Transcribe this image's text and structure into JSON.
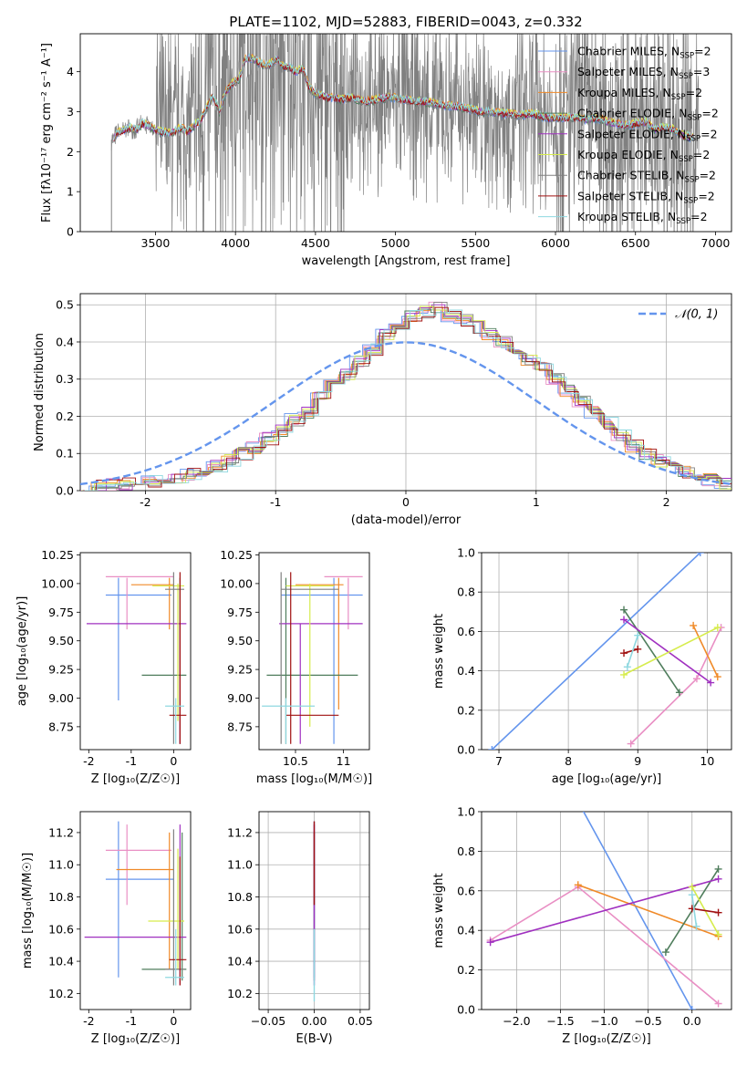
{
  "chart_data": [
    {
      "id": "spectrum",
      "type": "line",
      "title": "PLATE=1102, MJD=52883, FIBERID=0043, z=0.332",
      "xlabel": "wavelength [Angstrom, rest frame]",
      "ylabel": "Flux [fλ10⁻¹⁷ erg cm⁻² s⁻¹ A⁻¹]",
      "xlim": [
        3030,
        7100
      ],
      "ylim": [
        0,
        4.95
      ],
      "xticks": [
        3500,
        4000,
        4500,
        5000,
        5500,
        6000,
        6500,
        7000
      ],
      "yticks": [
        0,
        1,
        2,
        3,
        4
      ],
      "grid": false,
      "legend_position": "top-right",
      "data_points": {
        "wavelength": [
          3230,
          3260,
          3300,
          3340,
          3380,
          3420,
          3460,
          3500,
          3540,
          3580,
          3620,
          3660,
          3700,
          3740,
          3780,
          3820,
          3860,
          3900,
          3940,
          3980,
          4020,
          4060,
          4100,
          4140,
          4180,
          4220,
          4260,
          4300,
          4340,
          4380,
          4420,
          4460,
          4500,
          4540,
          4580,
          4620,
          4660,
          4700,
          4760,
          4820,
          4880,
          4940,
          5000,
          5060,
          5120,
          5180,
          5240,
          5300,
          5360,
          5420,
          5480,
          5540,
          5600,
          5660,
          5720,
          5780,
          5840,
          5900,
          5960,
          6020,
          6080,
          6140,
          6200,
          6260,
          6320,
          6380,
          6440,
          6500,
          6560,
          6620,
          6680,
          6740,
          6800,
          6860
        ],
        "model_flux": [
          2.3,
          2.45,
          2.55,
          2.6,
          2.55,
          2.7,
          2.65,
          2.55,
          2.5,
          2.45,
          2.5,
          2.6,
          2.5,
          2.65,
          2.75,
          3.1,
          3.4,
          3.0,
          3.5,
          3.7,
          3.8,
          4.3,
          4.35,
          4.25,
          4.15,
          4.2,
          4.3,
          4.15,
          4.1,
          4.0,
          4.1,
          3.6,
          3.45,
          3.4,
          3.35,
          3.35,
          3.3,
          3.35,
          3.3,
          3.25,
          3.3,
          3.35,
          3.35,
          3.3,
          3.25,
          3.25,
          3.2,
          3.15,
          3.15,
          3.1,
          3.05,
          3.0,
          3.0,
          2.95,
          2.95,
          2.9,
          2.95,
          2.9,
          2.85,
          2.85,
          2.85,
          2.85,
          2.8,
          2.85,
          2.75,
          2.7,
          2.65,
          2.7,
          2.75,
          2.55,
          2.6,
          2.55,
          2.4,
          2.35
        ]
      },
      "series": [
        {
          "name": "Chabrier MILES, N",
          "sub": "SSP",
          "eq": "=2",
          "color": "#6495ed"
        },
        {
          "name": "Salpeter MILES, N",
          "sub": "SSP",
          "eq": "=3",
          "color": "#e98fc4"
        },
        {
          "name": "Kroupa MILES, N",
          "sub": "SSP",
          "eq": "=2",
          "color": "#f08a28"
        },
        {
          "name": "Chabrier ELODIE, N",
          "sub": "SSP",
          "eq": "=2",
          "color": "#4f7d5c"
        },
        {
          "name": "Salpeter ELODIE, N",
          "sub": "SSP",
          "eq": "=2",
          "color": "#a030c0"
        },
        {
          "name": "Kroupa ELODIE, N",
          "sub": "SSP",
          "eq": "=2",
          "color": "#d6ec4c"
        },
        {
          "name": "Chabrier STELIB, N",
          "sub": "SSP",
          "eq": "=2",
          "color": "#808080"
        },
        {
          "name": "Salpeter STELIB, N",
          "sub": "SSP",
          "eq": "=2",
          "color": "#a01010"
        },
        {
          "name": "Kroupa STELIB, N",
          "sub": "SSP",
          "eq": "=2",
          "color": "#8fd8e0"
        }
      ]
    },
    {
      "id": "residuals",
      "type": "line",
      "title": "",
      "xlabel": "(data-model)/error",
      "ylabel": "Normed distribution",
      "xlim": [
        -2.5,
        2.5
      ],
      "ylim": [
        0,
        0.53
      ],
      "xticks": [
        -2,
        -1,
        0,
        1,
        2
      ],
      "yticks": [
        0.0,
        0.1,
        0.2,
        0.3,
        0.4,
        0.5
      ],
      "grid": true,
      "legend_position": "top-right",
      "legend_label": "𝒩(0, 1)",
      "histogram": {
        "bin_width": 0.1,
        "bin_start": -2.5,
        "values": [
          0.01,
          0.012,
          0.015,
          0.018,
          0.02,
          0.025,
          0.03,
          0.035,
          0.045,
          0.055,
          0.065,
          0.08,
          0.1,
          0.115,
          0.14,
          0.16,
          0.19,
          0.21,
          0.25,
          0.28,
          0.31,
          0.35,
          0.38,
          0.42,
          0.45,
          0.47,
          0.48,
          0.49,
          0.47,
          0.46,
          0.44,
          0.42,
          0.4,
          0.38,
          0.35,
          0.33,
          0.3,
          0.27,
          0.24,
          0.21,
          0.18,
          0.15,
          0.12,
          0.1,
          0.08,
          0.065,
          0.05,
          0.04,
          0.03,
          0.02
        ]
      },
      "gaussian_color": "#6495ed"
    },
    {
      "id": "age-vs-Z",
      "type": "scatter",
      "xlabel": "Z [log₁₀(Z/Z☉)]",
      "ylabel": "age  [log₁₀(age/yr)]",
      "xlim": [
        -2.2,
        0.4
      ],
      "ylim": [
        8.55,
        10.27
      ],
      "xticks": [
        -2,
        -1,
        0
      ],
      "yticks": [
        8.75,
        9.0,
        9.25,
        9.5,
        9.75,
        10.0,
        10.25
      ],
      "ytick_labels": [
        "8.75",
        "9.00",
        "9.25",
        "9.50",
        "9.75",
        "10.00",
        "10.25"
      ],
      "crosses": [
        {
          "c": "#6495ed",
          "x": [
            -1.6,
            -0.05
          ],
          "y": [
            8.98,
            10.05
          ],
          "cx": -1.3,
          "cy": 9.9
        },
        {
          "c": "#e98fc4",
          "x": [
            -1.6,
            0.0
          ],
          "y": [
            9.6,
            10.05
          ],
          "cx": -1.1,
          "cy": 10.06
        },
        {
          "c": "#f08a28",
          "x": [
            -1.0,
            0.0
          ],
          "y": [
            9.6,
            10.05
          ],
          "cx": -0.1,
          "cy": 9.99
        },
        {
          "c": "#4f7d5c",
          "x": [
            -0.75,
            0.3
          ],
          "y": [
            8.6,
            10.05
          ],
          "cx": 0.15,
          "cy": 9.2
        },
        {
          "c": "#a030c0",
          "x": [
            -2.05,
            0.3
          ],
          "y": [
            8.6,
            9.65
          ],
          "cx": 0.15,
          "cy": 9.65
        },
        {
          "c": "#d6ec4c",
          "x": [
            -0.5,
            0.25
          ],
          "y": [
            8.8,
            10.0
          ],
          "cx": 0.1,
          "cy": 9.98
        },
        {
          "c": "#808080",
          "x": [
            -0.2,
            0.25
          ],
          "y": [
            8.6,
            10.1
          ],
          "cx": 0.0,
          "cy": 9.95
        },
        {
          "c": "#a01010",
          "x": [
            -0.1,
            0.3
          ],
          "y": [
            8.6,
            10.1
          ],
          "cx": 0.15,
          "cy": 8.85
        },
        {
          "c": "#8fd8e0",
          "x": [
            -0.2,
            0.25
          ],
          "y": [
            8.6,
            9.0
          ],
          "cx": 0.05,
          "cy": 8.93
        }
      ]
    },
    {
      "id": "age-vs-mass",
      "type": "scatter",
      "xlabel": "mass [log₁₀(M/M☉)]",
      "ylabel": "",
      "xlim": [
        10.12,
        11.27
      ],
      "ylim": [
        8.55,
        10.27
      ],
      "xticks": [
        10.5,
        11.0
      ],
      "yticks": [
        8.75,
        9.0,
        9.25,
        9.5,
        9.75,
        10.0,
        10.25
      ],
      "ytick_labels": [
        "8.75",
        "9.00",
        "9.25",
        "9.50",
        "9.75",
        "10.00",
        "10.25"
      ],
      "crosses": [
        {
          "c": "#6495ed",
          "x": [
            10.35,
            11.2
          ],
          "y": [
            8.6,
            10.05
          ],
          "cx": 10.9,
          "cy": 9.9
        },
        {
          "c": "#e98fc4",
          "x": [
            10.8,
            11.2
          ],
          "y": [
            9.6,
            10.05
          ],
          "cx": 11.05,
          "cy": 10.06
        },
        {
          "c": "#f08a28",
          "x": [
            10.5,
            11.0
          ],
          "y": [
            8.9,
            10.05
          ],
          "cx": 10.95,
          "cy": 9.99
        },
        {
          "c": "#4f7d5c",
          "x": [
            10.2,
            11.15
          ],
          "y": [
            8.6,
            10.05
          ],
          "cx": 10.4,
          "cy": 9.2
        },
        {
          "c": "#a030c0",
          "x": [
            10.33,
            11.2
          ],
          "y": [
            8.6,
            9.65
          ],
          "cx": 10.55,
          "cy": 9.65
        },
        {
          "c": "#d6ec4c",
          "x": [
            10.4,
            10.9
          ],
          "y": [
            8.75,
            10.0
          ],
          "cx": 10.65,
          "cy": 9.98
        },
        {
          "c": "#808080",
          "x": [
            10.35,
            10.95
          ],
          "y": [
            8.6,
            10.1
          ],
          "cx": 10.35,
          "cy": 9.95
        },
        {
          "c": "#a01010",
          "x": [
            10.4,
            10.95
          ],
          "y": [
            8.6,
            10.1
          ],
          "cx": 10.45,
          "cy": 8.85
        },
        {
          "c": "#8fd8e0",
          "x": [
            10.15,
            10.7
          ],
          "y": [
            8.6,
            9.0
          ],
          "cx": 10.4,
          "cy": 8.93
        }
      ]
    },
    {
      "id": "weight-vs-age",
      "type": "line",
      "xlabel": "age  [log₁₀(age/yr)]",
      "ylabel": "mass weight",
      "xlim": [
        6.75,
        10.35
      ],
      "ylim": [
        0,
        1.0
      ],
      "xticks": [
        7,
        8,
        9,
        10
      ],
      "yticks": [
        0.0,
        0.2,
        0.4,
        0.6,
        0.8,
        1.0
      ],
      "grid": true,
      "lines": [
        {
          "c": "#6495ed",
          "pts": [
            [
              6.9,
              0.0
            ],
            [
              9.9,
              1.0
            ]
          ]
        },
        {
          "c": "#e98fc4",
          "pts": [
            [
              8.9,
              0.03
            ],
            [
              9.85,
              0.36
            ],
            [
              10.2,
              0.62
            ]
          ]
        },
        {
          "c": "#f08a28",
          "pts": [
            [
              9.8,
              0.63
            ],
            [
              10.15,
              0.37
            ]
          ]
        },
        {
          "c": "#4f7d5c",
          "pts": [
            [
              8.8,
              0.71
            ],
            [
              9.6,
              0.29
            ]
          ]
        },
        {
          "c": "#a030c0",
          "pts": [
            [
              8.8,
              0.66
            ],
            [
              10.05,
              0.34
            ]
          ]
        },
        {
          "c": "#d6ec4c",
          "pts": [
            [
              8.8,
              0.38
            ],
            [
              10.15,
              0.62
            ]
          ]
        },
        {
          "c": "#a01010",
          "pts": [
            [
              8.8,
              0.49
            ],
            [
              9.0,
              0.51
            ]
          ]
        },
        {
          "c": "#8fd8e0",
          "pts": [
            [
              8.85,
              0.42
            ],
            [
              9.0,
              0.58
            ]
          ]
        }
      ]
    },
    {
      "id": "mass-vs-Z",
      "type": "scatter",
      "xlabel": "Z [log₁₀(Z/Z☉)]",
      "ylabel": "mass [log₁₀(M/M☉)]",
      "xlim": [
        -2.2,
        0.4
      ],
      "ylim": [
        10.1,
        11.33
      ],
      "xticks": [
        -2,
        -1,
        0
      ],
      "yticks": [
        10.2,
        10.4,
        10.6,
        10.8,
        11.0,
        11.2
      ],
      "ytick_labels": [
        "10.2",
        "10.4",
        "10.6",
        "10.8",
        "11.0",
        "11.2"
      ],
      "crosses": [
        {
          "c": "#6495ed",
          "x": [
            -1.6,
            0.0
          ],
          "y": [
            10.3,
            11.27
          ],
          "cx": -1.3,
          "cy": 10.91
        },
        {
          "c": "#e98fc4",
          "x": [
            -1.6,
            -0.05
          ],
          "y": [
            10.75,
            11.25
          ],
          "cx": -1.1,
          "cy": 11.09
        },
        {
          "c": "#f08a28",
          "x": [
            -1.35,
            0.0
          ],
          "y": [
            10.35,
            11.2
          ],
          "cx": -0.1,
          "cy": 10.97
        },
        {
          "c": "#4f7d5c",
          "x": [
            -0.75,
            0.3
          ],
          "y": [
            10.28,
            11.2
          ],
          "cx": 0.2,
          "cy": 10.35
        },
        {
          "c": "#a030c0",
          "x": [
            -2.1,
            0.3
          ],
          "y": [
            10.25,
            11.25
          ],
          "cx": 0.15,
          "cy": 10.55
        },
        {
          "c": "#d6ec4c",
          "x": [
            -0.6,
            0.25
          ],
          "y": [
            10.35,
            11.1
          ],
          "cx": 0.1,
          "cy": 10.65
        },
        {
          "c": "#808080",
          "x": [
            -0.2,
            0.25
          ],
          "y": [
            10.25,
            11.22
          ],
          "cx": 0.0,
          "cy": 10.35
        },
        {
          "c": "#a01010",
          "x": [
            -0.1,
            0.3
          ],
          "y": [
            10.25,
            11.05
          ],
          "cx": 0.15,
          "cy": 10.41
        },
        {
          "c": "#8fd8e0",
          "x": [
            -0.2,
            0.25
          ],
          "y": [
            10.25,
            10.6
          ],
          "cx": 0.05,
          "cy": 10.3
        }
      ]
    },
    {
      "id": "mass-vs-ebv",
      "type": "scatter",
      "xlabel": "E(B-V)",
      "ylabel": "",
      "xlim": [
        -0.06,
        0.06
      ],
      "ylim": [
        10.1,
        11.33
      ],
      "xticks": [
        -0.05,
        0.0,
        0.05
      ],
      "xtick_labels": [
        "−0.05",
        "0.00",
        "0.05"
      ],
      "yticks": [
        10.2,
        10.4,
        10.6,
        10.8,
        11.0,
        11.2
      ],
      "ytick_labels": [
        "10.2",
        "10.4",
        "10.6",
        "10.8",
        "11.0",
        "11.2"
      ],
      "segments": [
        {
          "c": "#6495ed",
          "y": [
            10.3,
            11.27
          ]
        },
        {
          "c": "#4f7d5c",
          "y": [
            10.28,
            11.2
          ]
        },
        {
          "c": "#a030c0",
          "y": [
            10.25,
            11.25
          ]
        },
        {
          "c": "#a01010",
          "y": [
            10.75,
            11.27
          ]
        },
        {
          "c": "#8fd8e0",
          "y": [
            10.15,
            10.6
          ]
        }
      ]
    },
    {
      "id": "weight-vs-Z",
      "type": "line",
      "xlabel": "Z [log₁₀(Z/Z☉)]",
      "ylabel": "mass weight",
      "xlim": [
        -2.4,
        0.45
      ],
      "ylim": [
        0,
        1.0
      ],
      "xticks": [
        -2.0,
        -1.5,
        -1.0,
        -0.5,
        0.0
      ],
      "xtick_labels": [
        "−2.0",
        "−1.5",
        "−1.0",
        "−0.5",
        "0.0"
      ],
      "yticks": [
        0.0,
        0.2,
        0.4,
        0.6,
        0.8,
        1.0
      ],
      "grid": true,
      "lines": [
        {
          "c": "#6495ed",
          "pts": [
            [
              -1.3,
              1.05
            ],
            [
              0.0,
              0.0
            ]
          ]
        },
        {
          "c": "#e98fc4",
          "pts": [
            [
              -2.3,
              0.35
            ],
            [
              -1.3,
              0.62
            ],
            [
              0.3,
              0.03
            ]
          ]
        },
        {
          "c": "#f08a28",
          "pts": [
            [
              -1.3,
              0.63
            ],
            [
              0.3,
              0.37
            ]
          ]
        },
        {
          "c": "#4f7d5c",
          "pts": [
            [
              -0.3,
              0.29
            ],
            [
              0.3,
              0.71
            ]
          ]
        },
        {
          "c": "#a030c0",
          "pts": [
            [
              -2.3,
              0.34
            ],
            [
              0.3,
              0.66
            ]
          ]
        },
        {
          "c": "#d6ec4c",
          "pts": [
            [
              0.0,
              0.62
            ],
            [
              0.3,
              0.38
            ]
          ]
        },
        {
          "c": "#a01010",
          "pts": [
            [
              0.0,
              0.51
            ],
            [
              0.3,
              0.49
            ]
          ]
        },
        {
          "c": "#8fd8e0",
          "pts": [
            [
              0.0,
              0.58
            ],
            [
              0.05,
              0.42
            ]
          ]
        }
      ]
    }
  ]
}
